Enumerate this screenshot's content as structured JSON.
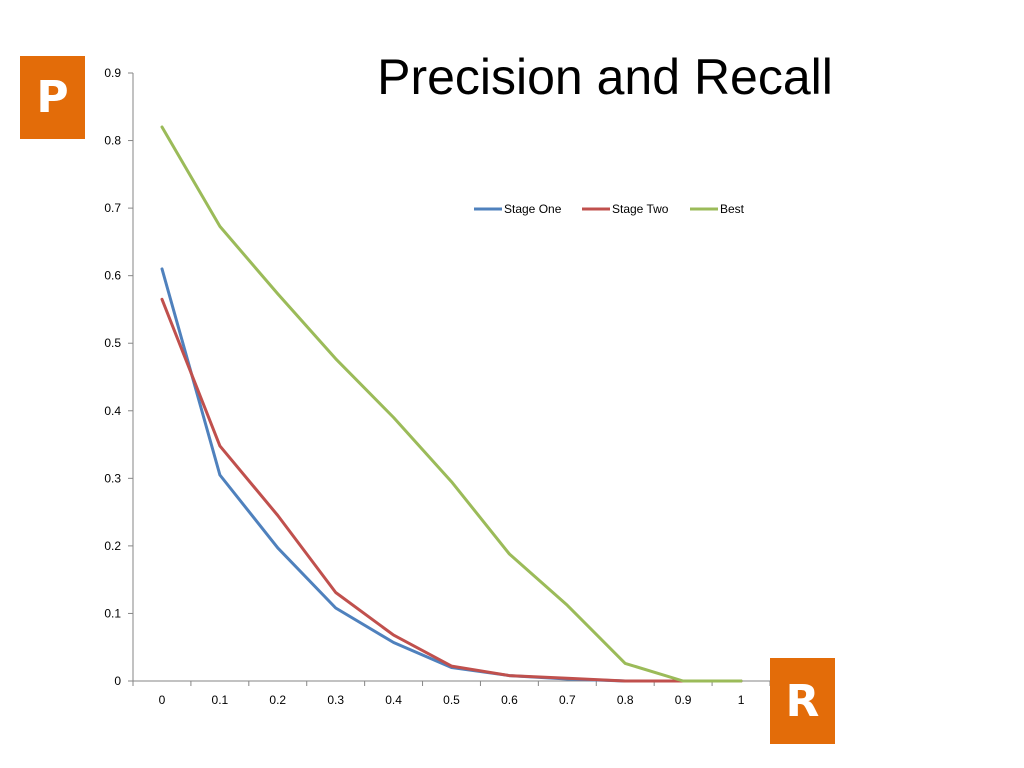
{
  "slide": {
    "title": "Precision and Recall",
    "badge_p": "P",
    "badge_r": "R",
    "badge_color": "#E36C09"
  },
  "chart_data": {
    "type": "line",
    "title": "",
    "xlabel": "",
    "ylabel": "",
    "x": [
      0,
      0.1,
      0.2,
      0.3,
      0.4,
      0.5,
      0.6,
      0.7,
      0.8,
      0.9,
      1
    ],
    "x_tick_labels": [
      "0",
      "0.1",
      "0.2",
      "0.3",
      "0.4",
      "0.5",
      "0.6",
      "0.7",
      "0.8",
      "0.9",
      "1"
    ],
    "y_tick_labels": [
      "0",
      "0.1",
      "0.2",
      "0.3",
      "0.4",
      "0.5",
      "0.6",
      "0.7",
      "0.8",
      "0.9"
    ],
    "ylim": [
      0,
      0.9
    ],
    "grid": false,
    "legend_position": "top-right",
    "series": [
      {
        "name": "Stage One",
        "color": "#4F81BD",
        "values": [
          0.61,
          0.305,
          0.197,
          0.108,
          0.057,
          0.02,
          0.008,
          0.003,
          0.0,
          0.0,
          0.0
        ]
      },
      {
        "name": "Stage Two",
        "color": "#C0504D",
        "values": [
          0.565,
          0.348,
          0.245,
          0.131,
          0.068,
          0.022,
          0.008,
          0.004,
          0.0,
          0.0,
          0.0
        ]
      },
      {
        "name": "Best",
        "color": "#9BBB59",
        "values": [
          0.82,
          0.673,
          0.573,
          0.477,
          0.39,
          0.295,
          0.188,
          0.112,
          0.026,
          0.0,
          0.0
        ]
      }
    ]
  }
}
